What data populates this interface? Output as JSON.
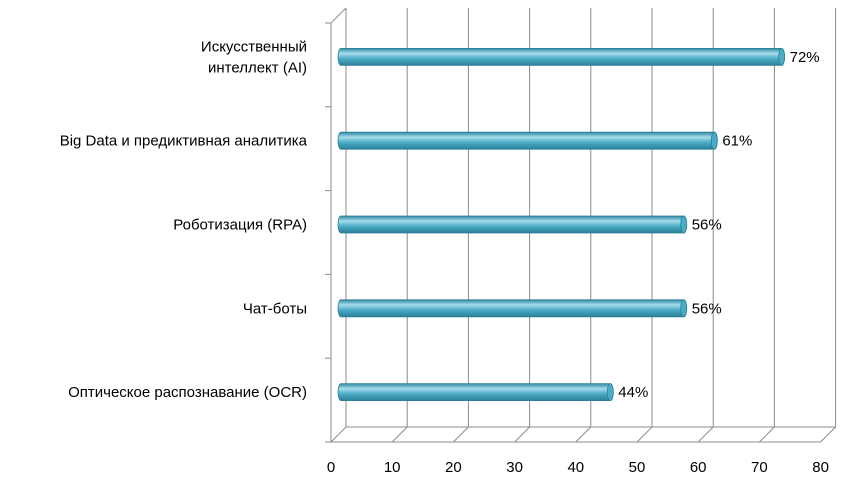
{
  "chart_data": {
    "type": "bar",
    "orientation": "horizontal",
    "style": "3d-cylinder",
    "categories": [
      [
        "Искусственный",
        "интеллект (AI)"
      ],
      [
        "Big Data и предиктивная аналитика"
      ],
      [
        "Роботизация (RPA)"
      ],
      [
        "Чат-боты"
      ],
      [
        "Оптическое распознавание (OCR)"
      ]
    ],
    "values": [
      72,
      61,
      56,
      56,
      44
    ],
    "data_labels": [
      "72%",
      "61%",
      "56%",
      "56%",
      "44%"
    ],
    "xlim": [
      0,
      80
    ],
    "x_ticks": [
      "0",
      "10",
      "20",
      "30",
      "40",
      "50",
      "60",
      "70",
      "80"
    ],
    "grid": true,
    "legend": "none",
    "colors": {
      "bar": "#4bacc6",
      "bar_light": "#a6dceb",
      "bar_dark": "#2b7f97",
      "grid": "#8c8c8c"
    }
  }
}
